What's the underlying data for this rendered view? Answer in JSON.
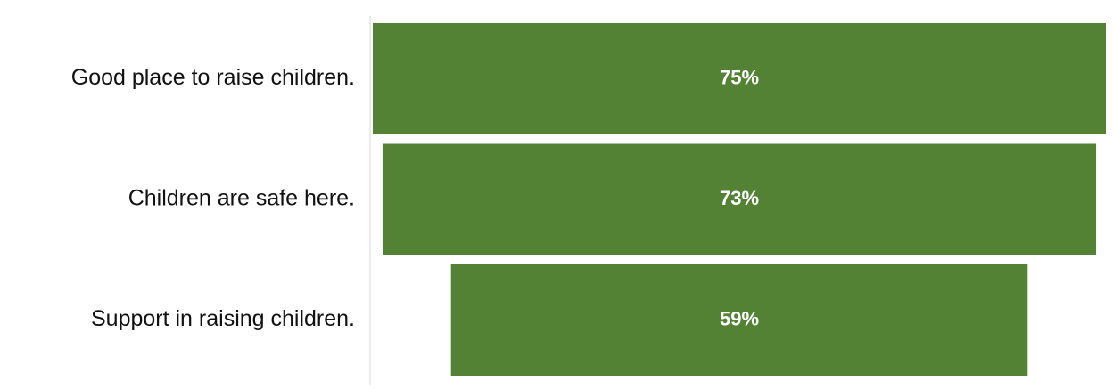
{
  "chart_data": {
    "type": "funnel",
    "categories": [
      "Good place to raise children.",
      "Children are safe here.",
      "Support in raising children."
    ],
    "values": [
      75,
      73,
      59
    ],
    "value_labels": [
      "75%",
      "73%",
      "59%"
    ],
    "color": "#548235"
  }
}
